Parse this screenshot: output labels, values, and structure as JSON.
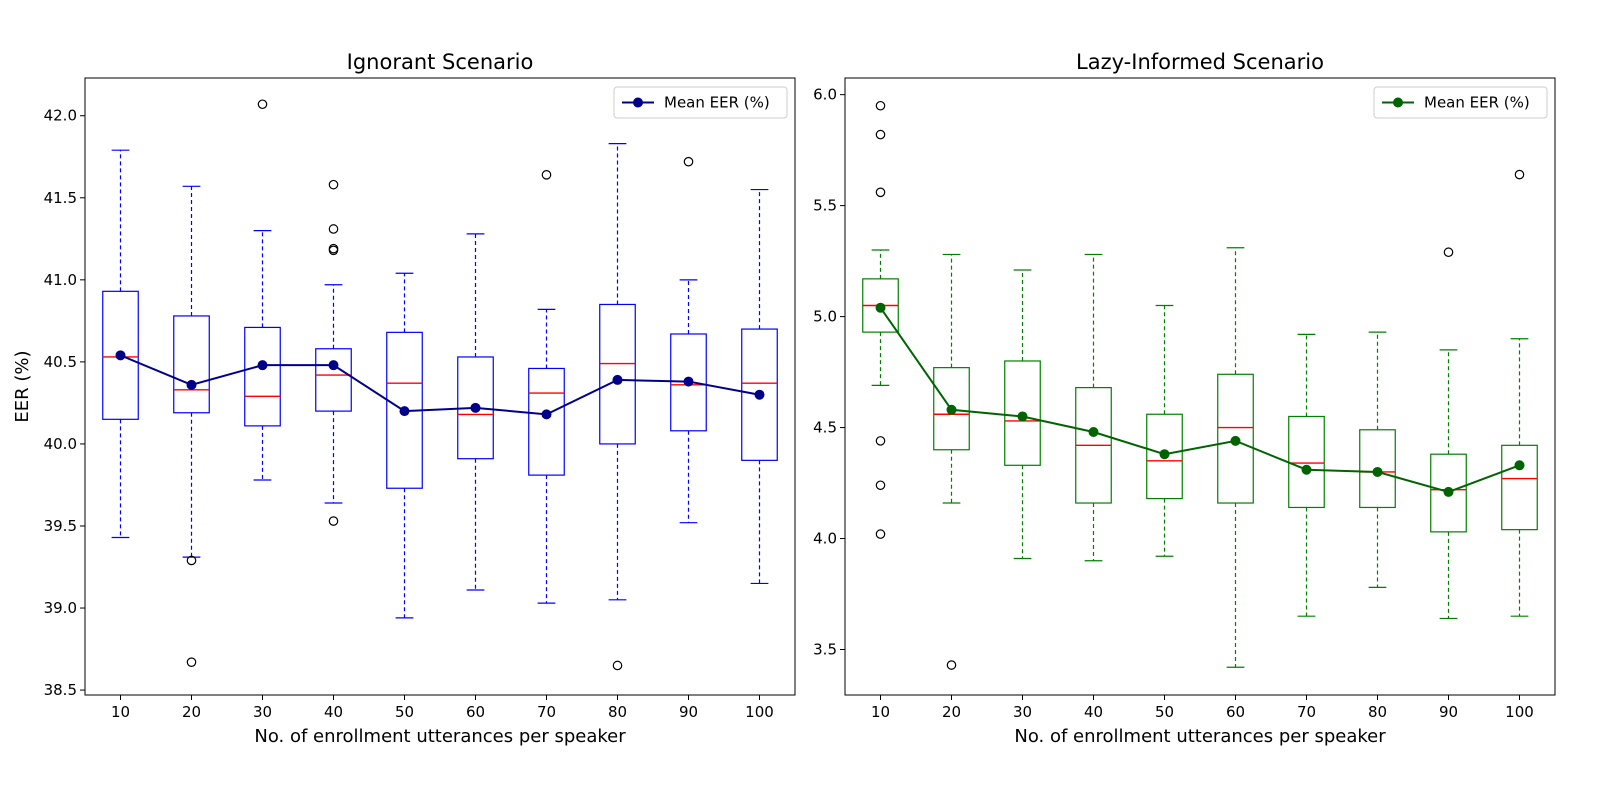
{
  "chart_data": [
    {
      "type": "box",
      "title": "Ignorant Scenario",
      "xlabel": "No. of enrollment utterances per speaker",
      "ylabel": "EER (%)",
      "ylim": [
        38.47,
        42.23
      ],
      "yticks": [
        38.5,
        39.0,
        39.5,
        40.0,
        40.5,
        41.0,
        41.5,
        42.0
      ],
      "ytick_labels": [
        "38.5",
        "39.0",
        "39.5",
        "40.0",
        "40.5",
        "41.0",
        "41.5",
        "42.0"
      ],
      "categories": [
        "10",
        "20",
        "30",
        "40",
        "50",
        "60",
        "70",
        "80",
        "90",
        "100"
      ],
      "box_color": "#0000ff",
      "median_color": "#ff0000",
      "boxes": [
        {
          "whislo": 39.43,
          "q1": 40.15,
          "med": 40.53,
          "q3": 40.93,
          "whishi": 41.79,
          "fliers": []
        },
        {
          "whislo": 39.31,
          "q1": 40.19,
          "med": 40.33,
          "q3": 40.78,
          "whishi": 41.57,
          "fliers": [
            39.29,
            38.67
          ]
        },
        {
          "whislo": 39.78,
          "q1": 40.11,
          "med": 40.29,
          "q3": 40.71,
          "whishi": 41.3,
          "fliers": [
            42.07
          ]
        },
        {
          "whislo": 39.64,
          "q1": 40.2,
          "med": 40.42,
          "q3": 40.58,
          "whishi": 40.97,
          "fliers": [
            41.58,
            41.31,
            41.19,
            41.18,
            39.53
          ]
        },
        {
          "whislo": 38.94,
          "q1": 39.73,
          "med": 40.37,
          "q3": 40.68,
          "whishi": 41.04,
          "fliers": []
        },
        {
          "whislo": 39.11,
          "q1": 39.91,
          "med": 40.18,
          "q3": 40.53,
          "whishi": 41.28,
          "fliers": []
        },
        {
          "whislo": 39.03,
          "q1": 39.81,
          "med": 40.31,
          "q3": 40.46,
          "whishi": 40.82,
          "fliers": [
            41.64
          ]
        },
        {
          "whislo": 39.05,
          "q1": 40.0,
          "med": 40.49,
          "q3": 40.85,
          "whishi": 41.83,
          "fliers": [
            38.65
          ]
        },
        {
          "whislo": 39.52,
          "q1": 40.08,
          "med": 40.36,
          "q3": 40.67,
          "whishi": 41.0,
          "fliers": [
            41.72
          ]
        },
        {
          "whislo": 39.15,
          "q1": 39.9,
          "med": 40.37,
          "q3": 40.7,
          "whishi": 41.55,
          "fliers": []
        }
      ],
      "series": [
        {
          "name": "Mean EER (%)",
          "color": "#00008b",
          "values": [
            40.54,
            40.36,
            40.48,
            40.48,
            40.2,
            40.22,
            40.18,
            40.39,
            40.38,
            40.3
          ]
        }
      ],
      "legend": "top-right",
      "grid": false
    },
    {
      "type": "box",
      "title": "Lazy-Informed Scenario",
      "xlabel": "No. of enrollment utterances per speaker",
      "ylabel": "",
      "ylim": [
        3.295,
        6.075
      ],
      "yticks": [
        3.5,
        4.0,
        4.5,
        5.0,
        5.5,
        6.0
      ],
      "ytick_labels": [
        "3.5",
        "4.0",
        "4.5",
        "5.0",
        "5.5",
        "6.0"
      ],
      "categories": [
        "10",
        "20",
        "30",
        "40",
        "50",
        "60",
        "70",
        "80",
        "90",
        "100"
      ],
      "box_color": "#008000",
      "median_color": "#ff0000",
      "boxes": [
        {
          "whislo": 4.69,
          "q1": 4.93,
          "med": 5.05,
          "q3": 5.17,
          "whishi": 5.3,
          "fliers": [
            5.95,
            5.82,
            5.56,
            4.44,
            4.24,
            4.02
          ]
        },
        {
          "whislo": 4.16,
          "q1": 4.4,
          "med": 4.56,
          "q3": 4.77,
          "whishi": 5.28,
          "fliers": [
            3.43
          ]
        },
        {
          "whislo": 3.91,
          "q1": 4.33,
          "med": 4.53,
          "q3": 4.8,
          "whishi": 5.21,
          "fliers": []
        },
        {
          "whislo": 3.9,
          "q1": 4.16,
          "med": 4.42,
          "q3": 4.68,
          "whishi": 5.28,
          "fliers": []
        },
        {
          "whislo": 3.92,
          "q1": 4.18,
          "med": 4.35,
          "q3": 4.56,
          "whishi": 5.05,
          "fliers": []
        },
        {
          "whislo": 3.42,
          "q1": 4.16,
          "med": 4.5,
          "q3": 4.74,
          "whishi": 5.31,
          "fliers": []
        },
        {
          "whislo": 3.65,
          "q1": 4.14,
          "med": 4.34,
          "q3": 4.55,
          "whishi": 4.92,
          "fliers": []
        },
        {
          "whislo": 3.78,
          "q1": 4.14,
          "med": 4.3,
          "q3": 4.49,
          "whishi": 4.93,
          "fliers": []
        },
        {
          "whislo": 3.64,
          "q1": 4.03,
          "med": 4.22,
          "q3": 4.38,
          "whishi": 4.85,
          "fliers": [
            5.29
          ]
        },
        {
          "whislo": 3.65,
          "q1": 4.04,
          "med": 4.27,
          "q3": 4.42,
          "whishi": 4.9,
          "fliers": [
            5.64
          ]
        }
      ],
      "series": [
        {
          "name": "Mean EER (%)",
          "color": "#006400",
          "values": [
            5.04,
            4.58,
            4.55,
            4.48,
            4.38,
            4.44,
            4.31,
            4.3,
            4.21,
            4.33
          ]
        }
      ],
      "legend": "top-right",
      "grid": false
    }
  ]
}
